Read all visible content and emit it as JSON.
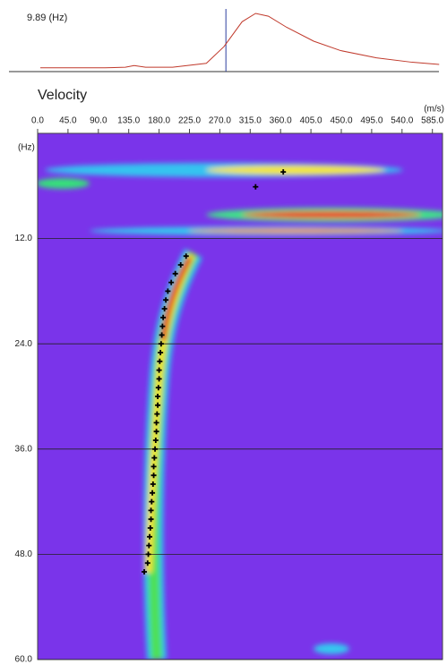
{
  "chart_data": [
    {
      "type": "line",
      "label": "9.89 (Hz)",
      "color": "#c0392b",
      "cursor_color": "#2c3e9e",
      "xlim": [
        0,
        600
      ],
      "ylim": [
        0,
        1
      ],
      "cursor_velocity": 279,
      "x": [
        4,
        100,
        130,
        143,
        160,
        200,
        250,
        276,
        303,
        323,
        342,
        369,
        409,
        449,
        502,
        555,
        595
      ],
      "values": [
        0.02,
        0.02,
        0.03,
        0.06,
        0.03,
        0.03,
        0.1,
        0.4,
        0.85,
        1.0,
        0.95,
        0.75,
        0.5,
        0.33,
        0.2,
        0.12,
        0.08
      ]
    },
    {
      "type": "scatter",
      "title": "Velocity",
      "x_unit": "(m/s)",
      "y_unit": "(Hz)",
      "color": "#000000",
      "xlim": [
        0,
        600
      ],
      "ylim": [
        0,
        60
      ],
      "y_reversed": true,
      "grid": true,
      "xticks": [
        {
          "value": 0,
          "label": "0.0"
        },
        {
          "value": 45,
          "label": "45.0"
        },
        {
          "value": 90,
          "label": "90.0"
        },
        {
          "value": 135,
          "label": "135.0"
        },
        {
          "value": 180,
          "label": "180.0"
        },
        {
          "value": 225,
          "label": "225.0"
        },
        {
          "value": 270,
          "label": "270.0"
        },
        {
          "value": 315,
          "label": "315.0"
        },
        {
          "value": 360,
          "label": "360.0"
        },
        {
          "value": 405,
          "label": "405.0"
        },
        {
          "value": 450,
          "label": "450.0"
        },
        {
          "value": 495,
          "label": "495.0"
        },
        {
          "value": 540,
          "label": "540.0"
        },
        {
          "value": 585,
          "label": "585.0"
        }
      ],
      "yticks": [
        {
          "value": 12,
          "label": "12.0"
        },
        {
          "value": 24,
          "label": "24.0"
        },
        {
          "value": 36,
          "label": "36.0"
        },
        {
          "value": 48,
          "label": "48.0"
        },
        {
          "value": 60,
          "label": "60.0"
        }
      ],
      "x": [
        364,
        323,
        220,
        212,
        204,
        198,
        193,
        190,
        188,
        186,
        185,
        184,
        183,
        182,
        181,
        180,
        180,
        179,
        178,
        178,
        177,
        176,
        176,
        175,
        174,
        173,
        172,
        172,
        171,
        170,
        169,
        168,
        168,
        167,
        166,
        165,
        164,
        163,
        158
      ],
      "values": [
        4.4,
        6.1,
        14,
        15,
        16,
        17,
        18,
        19,
        20,
        21,
        22,
        23,
        24,
        25,
        26,
        27,
        28,
        29,
        30,
        31,
        32,
        33,
        34,
        35,
        36,
        37,
        38,
        39,
        40,
        41,
        42,
        43,
        44,
        45,
        46,
        47,
        48,
        49,
        50
      ]
    }
  ]
}
